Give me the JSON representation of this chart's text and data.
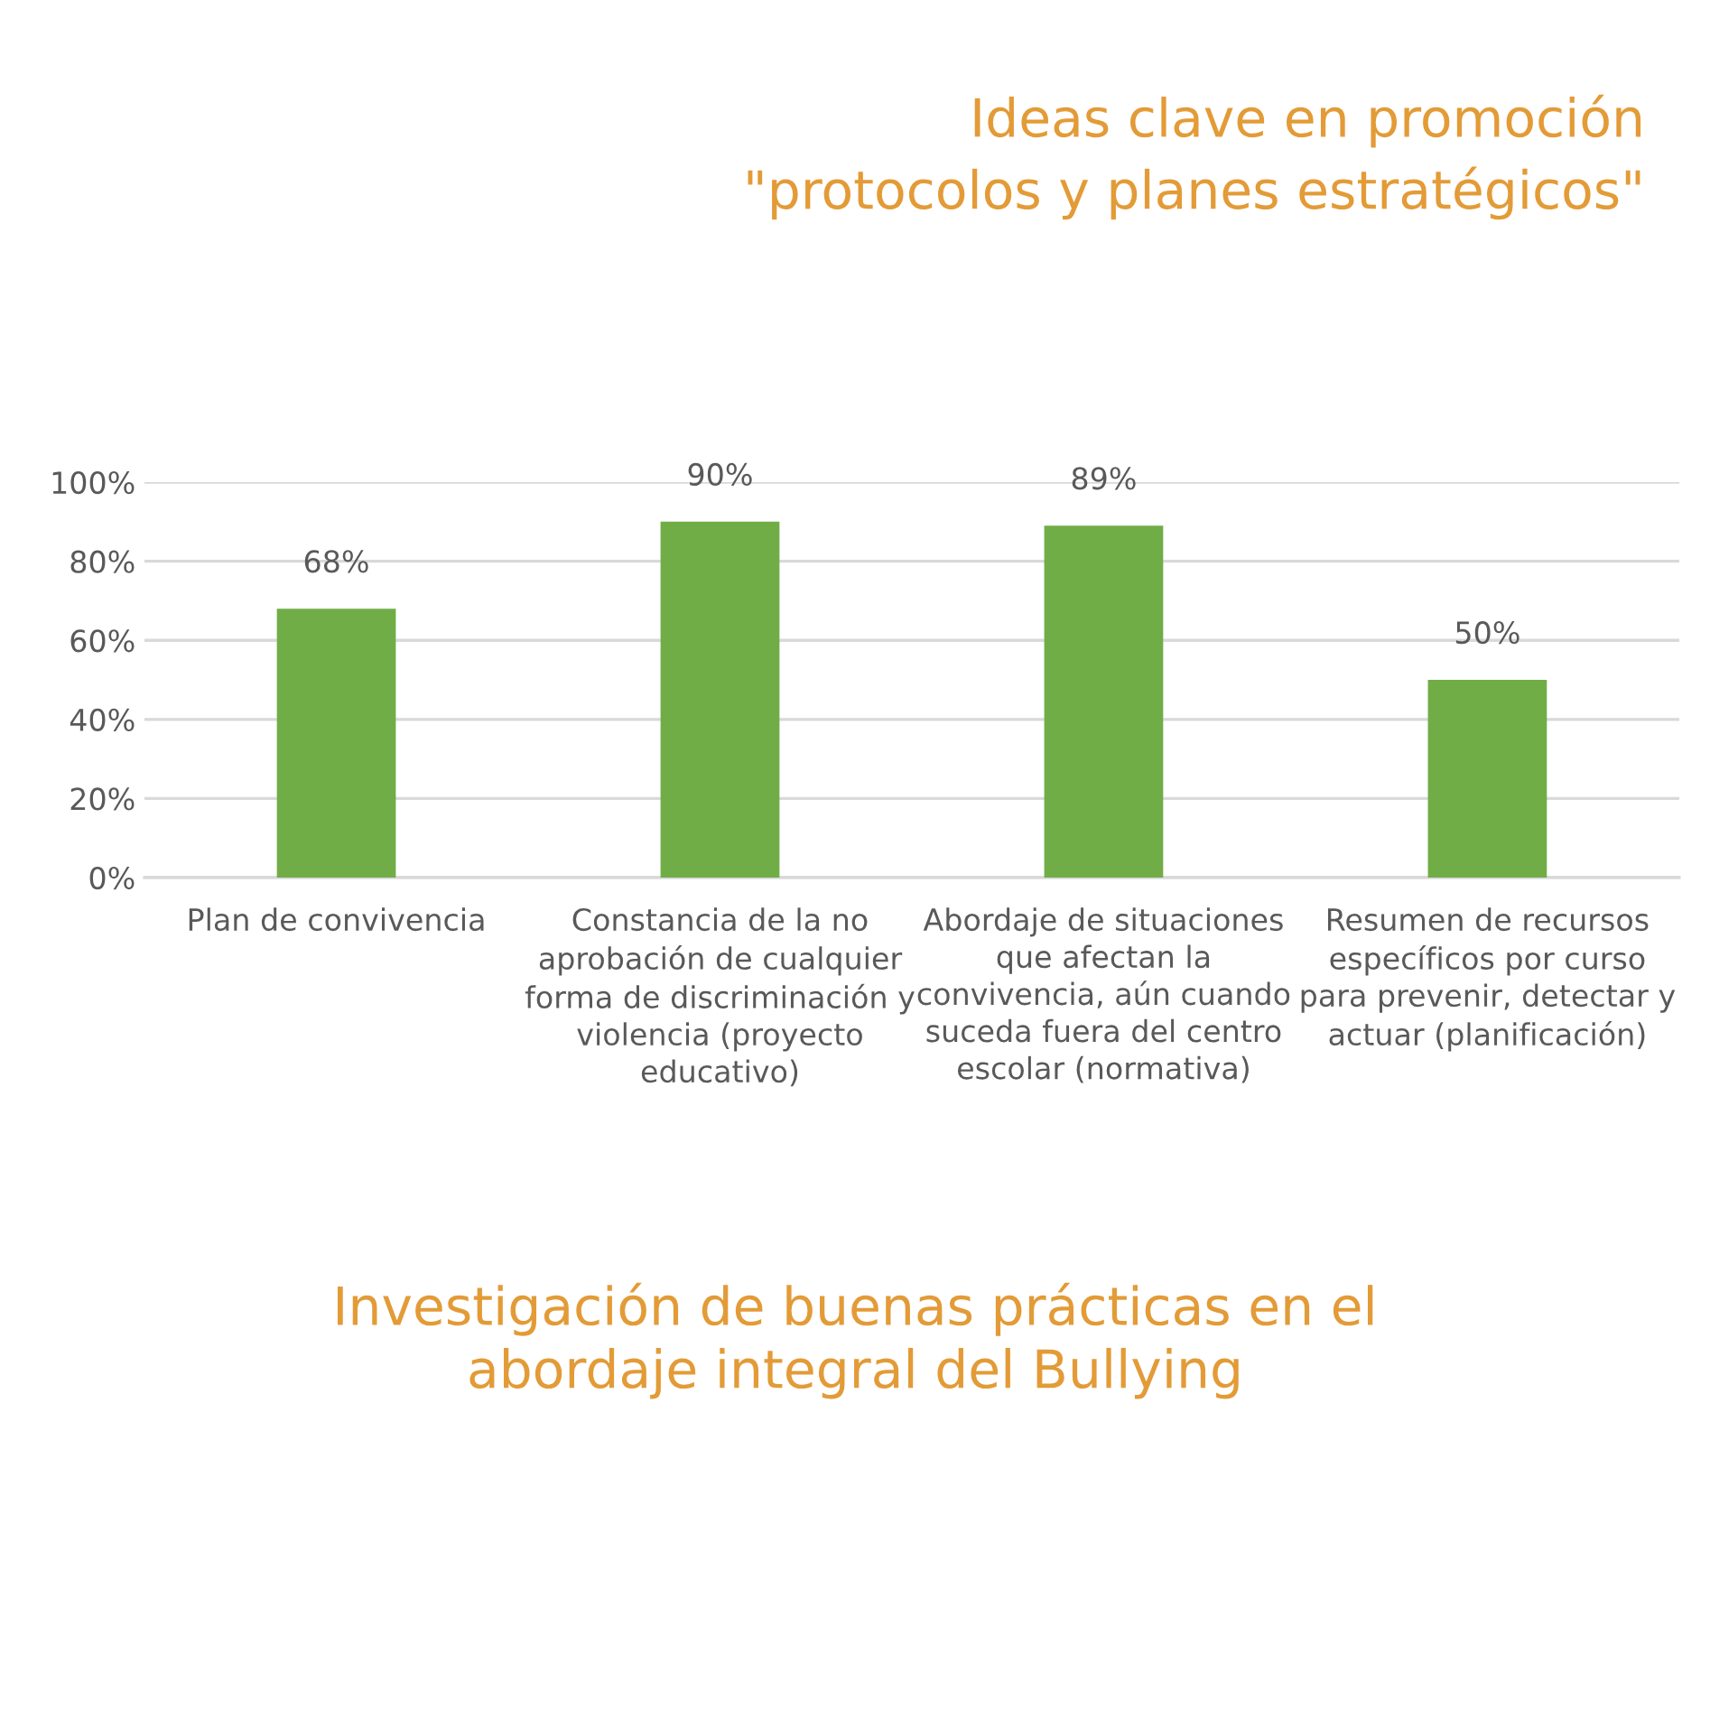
{
  "chart_data": {
    "type": "bar",
    "title": "Ideas clave en promoción\n\"protocolos y planes estratégicos\"",
    "categories": [
      "Plan de convivencia",
      "Constancia de la no\naprobación de cualquier\nforma de discriminación y\nviolencia (proyecto\neducativo)",
      "Abordaje de situaciones\nque afectan la\nconvivencia, aún cuando\nsuceda fuera del centro\nescolar (normativa)",
      "Resumen de recursos\nespecíficos por curso\npara prevenir, detectar y\nactuar (planificación)"
    ],
    "values": [
      68,
      90,
      89,
      50
    ],
    "value_labels": [
      "68%",
      "90%",
      "89%",
      "50%"
    ],
    "color": "#70ad47",
    "ylim": [
      0,
      100
    ],
    "yticks": [
      {
        "value": 0,
        "label": "0%"
      },
      {
        "value": 20,
        "label": "20%"
      },
      {
        "value": 40,
        "label": "40%"
      },
      {
        "value": 60,
        "label": "60%"
      },
      {
        "value": 80,
        "label": "80%"
      },
      {
        "value": 100,
        "label": "100%"
      }
    ],
    "grid": "y",
    "annotations": [
      "Investigación de buenas prácticas en el\nabordaje integral del Bullying"
    ]
  }
}
